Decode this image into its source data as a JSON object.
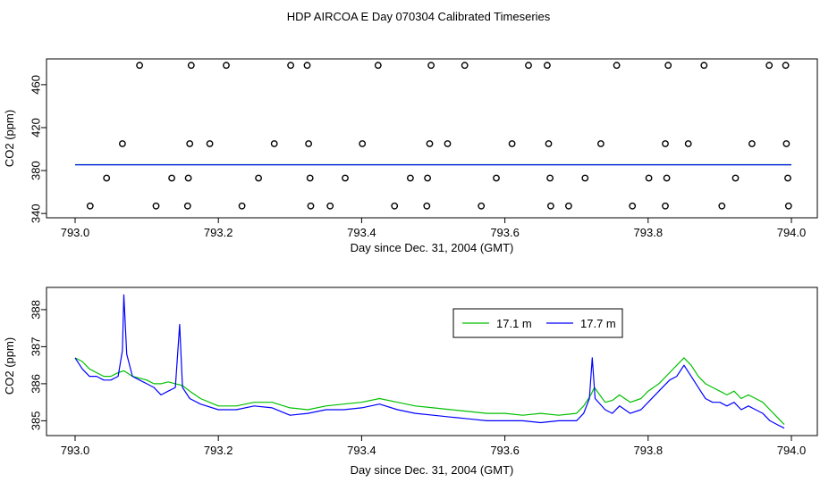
{
  "colors": {
    "green": "#00c000",
    "blue": "#0000ff",
    "axis": "#000000",
    "background": "#ffffff"
  },
  "chart_data": [
    {
      "type": "scatter+line",
      "title": "HDP AIRCOA E  Day 070304  Calibrated Timeseries",
      "xlabel": "Day since Dec. 31, 2004 (GMT)",
      "ylabel": "CO2 (ppm)",
      "xlim": [
        793.0,
        794.0
      ],
      "ylim": [
        336,
        484
      ],
      "xticks": [
        "793.0",
        "793.2",
        "793.4",
        "793.6",
        "793.8",
        "794.0"
      ],
      "xtick_values": [
        793.0,
        793.2,
        793.4,
        793.6,
        793.8,
        794.0
      ],
      "yticks": [
        "340",
        "380",
        "420",
        "460"
      ],
      "ytick_values": [
        340,
        380,
        420,
        460
      ],
      "grid": false,
      "calibration_points": {
        "levels": [
          347,
          373,
          405,
          478
        ],
        "x": {
          "347": [
            793.021,
            793.113,
            793.157,
            793.233,
            793.329,
            793.356,
            793.446,
            793.491,
            793.567,
            793.664,
            793.689,
            793.778,
            793.824,
            793.903,
            793.996
          ],
          "373": [
            793.044,
            793.135,
            793.158,
            793.256,
            793.328,
            793.377,
            793.468,
            793.492,
            793.588,
            793.663,
            793.712,
            793.801,
            793.826,
            793.922,
            793.995
          ],
          "405": [
            793.066,
            793.16,
            793.188,
            793.278,
            793.326,
            793.401,
            793.495,
            793.52,
            793.61,
            793.661,
            793.734,
            793.824,
            793.856,
            793.945,
            793.993
          ],
          "478": [
            793.09,
            793.162,
            793.211,
            793.301,
            793.324,
            793.423,
            793.497,
            793.544,
            793.633,
            793.659,
            793.756,
            793.828,
            793.878,
            793.969,
            793.992
          ]
        }
      },
      "series": [
        {
          "name": "17.1 m",
          "color": "#00c000",
          "x": [
            793.0,
            794.0
          ],
          "values": [
            385.5,
            385.5
          ]
        },
        {
          "name": "17.7 m",
          "color": "#0000ff",
          "x": [
            793.0,
            794.0
          ],
          "values": [
            385.3,
            385.3
          ]
        }
      ]
    },
    {
      "type": "line",
      "title": "",
      "xlabel": "Day since Dec. 31, 2004 (GMT)",
      "ylabel": "CO2 (ppm)",
      "xlim": [
        793.0,
        794.0
      ],
      "ylim": [
        384.6,
        388.6
      ],
      "xticks": [
        "793.0",
        "793.2",
        "793.4",
        "793.6",
        "793.8",
        "794.0"
      ],
      "xtick_values": [
        793.0,
        793.2,
        793.4,
        793.6,
        793.8,
        794.0
      ],
      "yticks": [
        "385",
        "386",
        "387",
        "388"
      ],
      "ytick_values": [
        385,
        386,
        387,
        388
      ],
      "grid": false,
      "legend": {
        "placement": "top-center",
        "entries": [
          "17.1 m",
          "17.7 m"
        ]
      },
      "series": [
        {
          "name": "17.1 m",
          "color": "#00c000",
          "x": [
            793.0,
            793.01,
            793.02,
            793.03,
            793.04,
            793.05,
            793.06,
            793.068,
            793.08,
            793.09,
            793.1,
            793.11,
            793.12,
            793.13,
            793.14,
            793.15,
            793.16,
            793.175,
            793.2,
            793.225,
            793.25,
            793.275,
            793.3,
            793.325,
            793.35,
            793.375,
            793.4,
            793.425,
            793.45,
            793.475,
            793.5,
            793.525,
            793.55,
            793.575,
            793.6,
            793.625,
            793.65,
            793.675,
            793.7,
            793.71,
            793.72,
            793.725,
            793.74,
            793.75,
            793.76,
            793.775,
            793.79,
            793.8,
            793.815,
            793.83,
            793.84,
            793.85,
            793.86,
            793.87,
            793.88,
            793.89,
            793.9,
            793.91,
            793.92,
            793.93,
            793.94,
            793.95,
            793.96,
            793.97,
            793.98,
            793.99
          ],
          "values": [
            386.7,
            386.6,
            386.4,
            386.3,
            386.2,
            386.2,
            386.3,
            386.35,
            386.2,
            386.15,
            386.1,
            386.0,
            386.0,
            386.05,
            386.0,
            385.95,
            385.8,
            385.6,
            385.4,
            385.4,
            385.5,
            385.5,
            385.35,
            385.3,
            385.4,
            385.45,
            385.5,
            385.6,
            385.5,
            385.4,
            385.35,
            385.3,
            385.25,
            385.2,
            385.2,
            385.15,
            385.2,
            385.15,
            385.2,
            385.4,
            385.7,
            385.9,
            385.5,
            385.55,
            385.7,
            385.5,
            385.6,
            385.8,
            386.0,
            386.3,
            386.5,
            386.7,
            386.5,
            386.2,
            386.0,
            385.9,
            385.8,
            385.7,
            385.8,
            385.6,
            385.7,
            385.6,
            385.5,
            385.3,
            385.1,
            384.9
          ]
        },
        {
          "name": "17.7 m",
          "color": "#0000ff",
          "x": [
            793.0,
            793.01,
            793.02,
            793.03,
            793.04,
            793.05,
            793.06,
            793.066,
            793.068,
            793.072,
            793.08,
            793.09,
            793.1,
            793.11,
            793.12,
            793.13,
            793.14,
            793.146,
            793.15,
            793.16,
            793.175,
            793.2,
            793.225,
            793.25,
            793.275,
            793.3,
            793.325,
            793.35,
            793.375,
            793.4,
            793.425,
            793.45,
            793.475,
            793.5,
            793.525,
            793.55,
            793.575,
            793.6,
            793.625,
            793.65,
            793.675,
            793.7,
            793.71,
            793.718,
            793.722,
            793.726,
            793.74,
            793.75,
            793.76,
            793.775,
            793.79,
            793.8,
            793.815,
            793.83,
            793.84,
            793.85,
            793.86,
            793.87,
            793.88,
            793.89,
            793.9,
            793.91,
            793.92,
            793.93,
            793.94,
            793.95,
            793.96,
            793.97,
            793.98,
            793.99
          ],
          "values": [
            386.7,
            386.4,
            386.2,
            386.2,
            386.1,
            386.1,
            386.2,
            386.9,
            388.4,
            386.8,
            386.2,
            386.1,
            386.0,
            385.9,
            385.7,
            385.8,
            385.9,
            387.6,
            385.9,
            385.6,
            385.45,
            385.3,
            385.3,
            385.4,
            385.35,
            385.15,
            385.2,
            385.3,
            385.3,
            385.35,
            385.45,
            385.3,
            385.2,
            385.15,
            385.1,
            385.05,
            385.0,
            385.0,
            385.0,
            384.95,
            385.0,
            385.0,
            385.2,
            385.6,
            386.7,
            385.6,
            385.3,
            385.2,
            385.4,
            385.2,
            385.3,
            385.5,
            385.8,
            386.1,
            386.2,
            386.5,
            386.2,
            385.9,
            385.6,
            385.5,
            385.5,
            385.4,
            385.5,
            385.3,
            385.4,
            385.3,
            385.2,
            385.0,
            384.9,
            384.8
          ]
        }
      ]
    }
  ]
}
